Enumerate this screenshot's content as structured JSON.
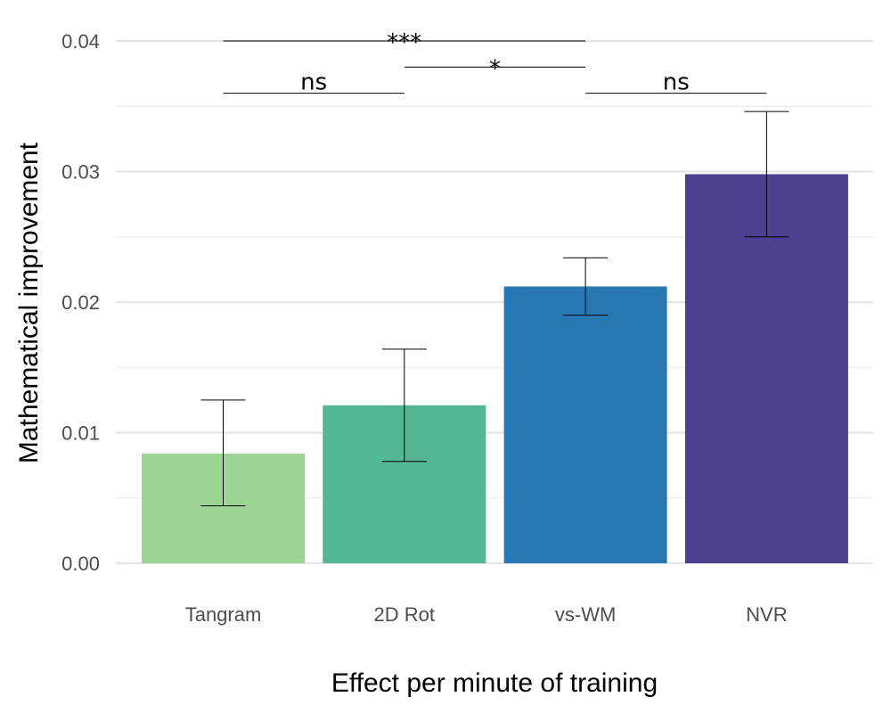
{
  "chart_data": {
    "type": "bar",
    "title": "",
    "xlabel": "Effect per minute of training",
    "ylabel": "Mathematical improvement",
    "ylim": [
      0,
      0.04
    ],
    "yticks": [
      0,
      0.01,
      0.02,
      0.03,
      0.04
    ],
    "ytick_labels": [
      "0.00",
      "0.01",
      "0.02",
      "0.03",
      "0.04"
    ],
    "grid": true,
    "legend": "none",
    "categories": [
      "Tangram",
      "2D Rot",
      "vs-WM",
      "NVR"
    ],
    "values": [
      0.0084,
      0.0121,
      0.0212,
      0.0298
    ],
    "error_low": [
      0.0044,
      0.0078,
      0.019,
      0.025
    ],
    "error_high": [
      0.0125,
      0.0164,
      0.0234,
      0.0346
    ],
    "colors": [
      "#9bd493",
      "#53b794",
      "#2777b0",
      "#4e408f"
    ],
    "significance": [
      {
        "from": 0,
        "to": 2,
        "y": 0.04,
        "label": "***"
      },
      {
        "from": 1,
        "to": 2,
        "y": 0.038,
        "label": "*"
      },
      {
        "from": 0,
        "to": 1,
        "y": 0.036,
        "label": "ns"
      },
      {
        "from": 2,
        "to": 3,
        "y": 0.036,
        "label": "ns"
      }
    ]
  }
}
